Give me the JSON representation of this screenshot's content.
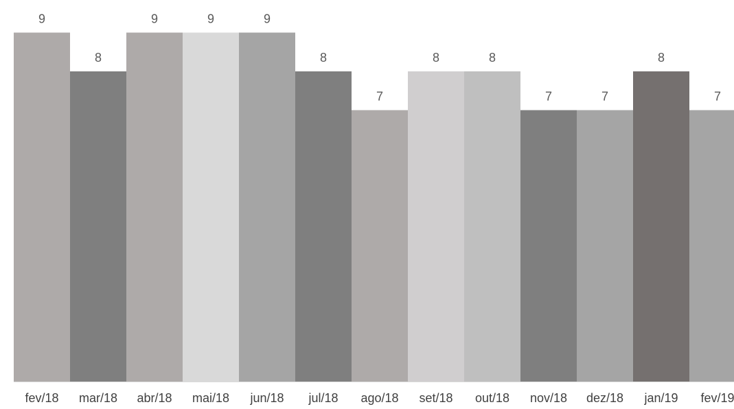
{
  "chart_data": {
    "type": "bar",
    "categories": [
      "fev/18",
      "mar/18",
      "abr/18",
      "mai/18",
      "jun/18",
      "jul/18",
      "ago/18",
      "set/18",
      "out/18",
      "nov/18",
      "dez/18",
      "jan/19",
      "fev/19"
    ],
    "values": [
      9,
      8,
      9,
      9,
      9,
      8,
      7,
      8,
      8,
      7,
      7,
      8,
      7
    ],
    "title": "",
    "xlabel": "",
    "ylabel": "",
    "ylim": [
      0,
      9
    ],
    "grid": false,
    "data_labels": true,
    "bar_colors": [
      "#aeaaa9",
      "#7f7f7f",
      "#aeaaa9",
      "#d9d9d9",
      "#a5a5a5",
      "#7f7f7f",
      "#aeaaa9",
      "#d0cecf",
      "#bfbfbf",
      "#7f7f7f",
      "#a5a5a5",
      "#75706f",
      "#a5a5a5"
    ],
    "axis_color": "#d9d9d9"
  }
}
